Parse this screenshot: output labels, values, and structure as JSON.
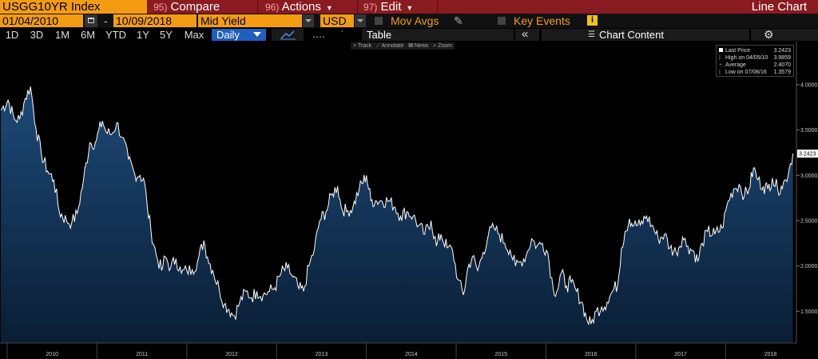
{
  "toolbar": {
    "ticker": "USGG10YR Index",
    "compare_num": "95)",
    "compare": "Compare",
    "actions_num": "96)",
    "actions": "Actions",
    "edit_num": "97)",
    "edit": "Edit",
    "title": "Line Chart",
    "start_date": "01/04/2010",
    "dash": "-",
    "end_date": "10/09/2018",
    "field": "Mid Yield",
    "currency": "USD",
    "mov_avgs": "Mov Avgs",
    "key_events": "Key Events",
    "ranges": [
      "1D",
      "3D",
      "1M",
      "6M",
      "YTD",
      "1Y",
      "5Y",
      "Max"
    ],
    "frequency": "Daily",
    "table": "Table",
    "collapse": "«",
    "chart_content": "Chart Content",
    "sub_tools": [
      "+ Track",
      "⟋ Annotate",
      "▤ News",
      "⌕ Zoom"
    ]
  },
  "legend": {
    "rows": [
      {
        "label": "Last Price",
        "value": "3.2423"
      },
      {
        "label": "High on 04/05/10",
        "value": "3.9859"
      },
      {
        "label": "Average",
        "value": "2.4070"
      },
      {
        "label": "Low on 07/08/16",
        "value": "1.3579"
      }
    ]
  },
  "colors": {
    "line": "#ffffff",
    "fill_top": "#1d4a78",
    "fill_bottom": "#0a1e35",
    "accent": "#f39c12",
    "header": "#8a1b20"
  },
  "chart_data": {
    "type": "area",
    "title": "",
    "xlabel": "",
    "ylabel": "",
    "last_value_label": "3.2423",
    "ylim": [
      1.15,
      4.3
    ],
    "xlim": [
      2009.92,
      2018.78
    ],
    "yticks": [
      1.5,
      2.0,
      2.5,
      3.0,
      3.5,
      4.0
    ],
    "ytick_labels": [
      "1.5000",
      "2.0000",
      "2.5000",
      "3.0000",
      "3.5000",
      "4.0000"
    ],
    "xtick_years": [
      "2010",
      "2011",
      "2012",
      "2013",
      "2014",
      "2015",
      "2016",
      "2017",
      "2018"
    ],
    "grid": false,
    "legend_position": "top-right",
    "series": [
      {
        "name": "Last Price",
        "points": [
          [
            2009.93,
            3.72
          ],
          [
            2010.01,
            3.83
          ],
          [
            2010.08,
            3.62
          ],
          [
            2010.14,
            3.62
          ],
          [
            2010.2,
            3.85
          ],
          [
            2010.26,
            3.98
          ],
          [
            2010.32,
            3.52
          ],
          [
            2010.38,
            3.24
          ],
          [
            2010.45,
            3.05
          ],
          [
            2010.52,
            2.95
          ],
          [
            2010.58,
            2.6
          ],
          [
            2010.66,
            2.5
          ],
          [
            2010.72,
            2.48
          ],
          [
            2010.78,
            2.58
          ],
          [
            2010.85,
            2.95
          ],
          [
            2010.92,
            3.36
          ],
          [
            2010.98,
            3.36
          ],
          [
            2011.06,
            3.6
          ],
          [
            2011.1,
            3.48
          ],
          [
            2011.16,
            3.45
          ],
          [
            2011.22,
            3.58
          ],
          [
            2011.28,
            3.42
          ],
          [
            2011.35,
            3.18
          ],
          [
            2011.42,
            3.02
          ],
          [
            2011.48,
            3.0
          ],
          [
            2011.53,
            2.92
          ],
          [
            2011.56,
            2.65
          ],
          [
            2011.6,
            2.4
          ],
          [
            2011.66,
            2.12
          ],
          [
            2011.72,
            1.95
          ],
          [
            2011.76,
            2.1
          ],
          [
            2011.82,
            1.98
          ],
          [
            2011.88,
            2.08
          ],
          [
            2011.94,
            1.92
          ],
          [
            2012.0,
            1.95
          ],
          [
            2012.06,
            1.96
          ],
          [
            2012.12,
            2.05
          ],
          [
            2012.19,
            2.28
          ],
          [
            2012.23,
            2.1
          ],
          [
            2012.29,
            1.95
          ],
          [
            2012.36,
            1.75
          ],
          [
            2012.42,
            1.58
          ],
          [
            2012.47,
            1.52
          ],
          [
            2012.53,
            1.45
          ],
          [
            2012.59,
            1.6
          ],
          [
            2012.66,
            1.72
          ],
          [
            2012.72,
            1.65
          ],
          [
            2012.78,
            1.72
          ],
          [
            2012.85,
            1.68
          ],
          [
            2012.92,
            1.72
          ],
          [
            2012.98,
            1.76
          ],
          [
            2013.05,
            1.92
          ],
          [
            2013.12,
            1.98
          ],
          [
            2013.18,
            1.88
          ],
          [
            2013.25,
            1.75
          ],
          [
            2013.3,
            1.72
          ],
          [
            2013.36,
            2.0
          ],
          [
            2013.42,
            2.18
          ],
          [
            2013.48,
            2.5
          ],
          [
            2013.55,
            2.6
          ],
          [
            2013.62,
            2.8
          ],
          [
            2013.68,
            2.88
          ],
          [
            2013.72,
            2.65
          ],
          [
            2013.78,
            2.6
          ],
          [
            2013.85,
            2.65
          ],
          [
            2013.92,
            2.85
          ],
          [
            2014.0,
            3.0
          ],
          [
            2014.05,
            2.72
          ],
          [
            2014.1,
            2.72
          ],
          [
            2014.17,
            2.72
          ],
          [
            2014.25,
            2.72
          ],
          [
            2014.32,
            2.65
          ],
          [
            2014.38,
            2.55
          ],
          [
            2014.45,
            2.6
          ],
          [
            2014.52,
            2.55
          ],
          [
            2014.58,
            2.45
          ],
          [
            2014.65,
            2.35
          ],
          [
            2014.72,
            2.5
          ],
          [
            2014.78,
            2.22
          ],
          [
            2014.83,
            2.35
          ],
          [
            2014.9,
            2.2
          ],
          [
            2014.96,
            2.17
          ],
          [
            2015.02,
            1.85
          ],
          [
            2015.08,
            1.68
          ],
          [
            2015.13,
            1.98
          ],
          [
            2015.18,
            2.1
          ],
          [
            2015.24,
            1.95
          ],
          [
            2015.3,
            2.15
          ],
          [
            2015.36,
            2.35
          ],
          [
            2015.42,
            2.42
          ],
          [
            2015.48,
            2.35
          ],
          [
            2015.54,
            2.25
          ],
          [
            2015.6,
            2.18
          ],
          [
            2015.66,
            2.0
          ],
          [
            2015.72,
            2.05
          ],
          [
            2015.78,
            2.12
          ],
          [
            2015.84,
            2.3
          ],
          [
            2015.9,
            2.22
          ],
          [
            2015.96,
            2.25
          ],
          [
            2016.02,
            2.15
          ],
          [
            2016.08,
            1.75
          ],
          [
            2016.12,
            1.72
          ],
          [
            2016.17,
            1.92
          ],
          [
            2016.23,
            1.78
          ],
          [
            2016.28,
            1.82
          ],
          [
            2016.34,
            1.72
          ],
          [
            2016.4,
            1.6
          ],
          [
            2016.45,
            1.42
          ],
          [
            2016.5,
            1.36
          ],
          [
            2016.56,
            1.5
          ],
          [
            2016.62,
            1.55
          ],
          [
            2016.68,
            1.6
          ],
          [
            2016.74,
            1.72
          ],
          [
            2016.8,
            1.8
          ],
          [
            2016.84,
            2.2
          ],
          [
            2016.88,
            2.38
          ],
          [
            2016.93,
            2.52
          ],
          [
            2016.98,
            2.45
          ],
          [
            2017.05,
            2.45
          ],
          [
            2017.12,
            2.55
          ],
          [
            2017.18,
            2.45
          ],
          [
            2017.25,
            2.3
          ],
          [
            2017.32,
            2.35
          ],
          [
            2017.38,
            2.2
          ],
          [
            2017.45,
            2.15
          ],
          [
            2017.52,
            2.32
          ],
          [
            2017.58,
            2.22
          ],
          [
            2017.65,
            2.15
          ],
          [
            2017.69,
            2.05
          ],
          [
            2017.74,
            2.25
          ],
          [
            2017.8,
            2.38
          ],
          [
            2017.88,
            2.35
          ],
          [
            2017.96,
            2.42
          ],
          [
            2018.03,
            2.72
          ],
          [
            2018.09,
            2.85
          ],
          [
            2018.15,
            2.9
          ],
          [
            2018.21,
            2.78
          ],
          [
            2018.26,
            2.85
          ],
          [
            2018.31,
            3.08
          ],
          [
            2018.36,
            2.95
          ],
          [
            2018.42,
            2.88
          ],
          [
            2018.47,
            2.85
          ],
          [
            2018.52,
            2.97
          ],
          [
            2018.58,
            2.85
          ],
          [
            2018.62,
            2.88
          ],
          [
            2018.67,
            2.95
          ],
          [
            2018.71,
            3.08
          ],
          [
            2018.75,
            3.24
          ]
        ]
      }
    ]
  }
}
